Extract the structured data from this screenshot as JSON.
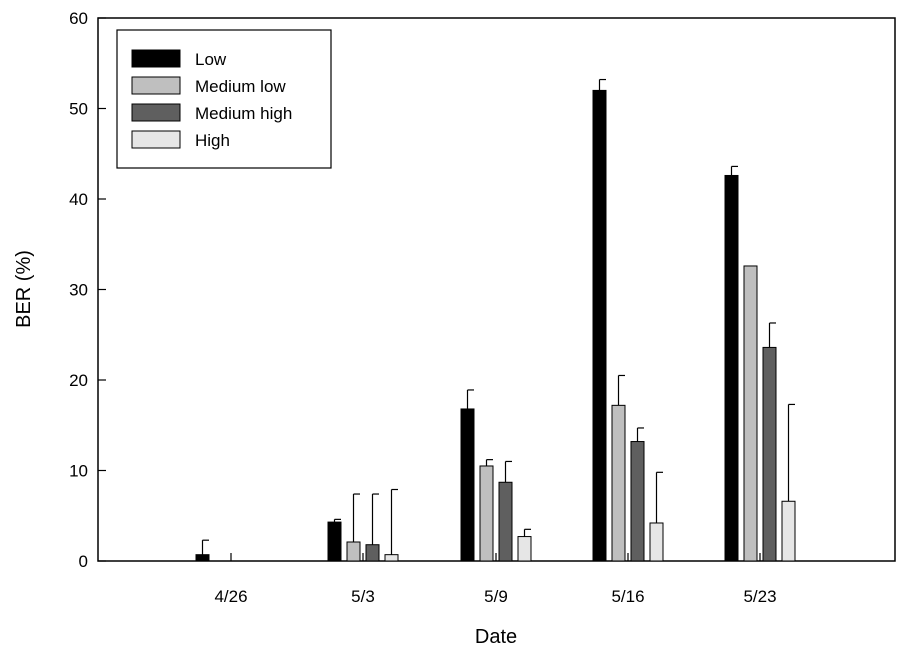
{
  "chart_data": {
    "type": "bar",
    "xlabel": "Date",
    "ylabel": "BER (%)",
    "ylim": [
      0,
      60
    ],
    "yticks": [
      0,
      10,
      20,
      30,
      40,
      50,
      60
    ],
    "categories": [
      "4/26",
      "5/3",
      "5/9",
      "5/16",
      "5/23"
    ],
    "legend_position": "top-left",
    "series": [
      {
        "name": "Low",
        "color": "#000000",
        "values": [
          0.7,
          4.3,
          16.8,
          52.0,
          42.6
        ],
        "error": [
          1.6,
          0.3,
          2.1,
          1.2,
          1.0
        ]
      },
      {
        "name": "Medium low",
        "color": "#bfbfbf",
        "values": [
          0,
          2.1,
          10.5,
          17.2,
          32.6
        ],
        "error": [
          0,
          5.3,
          0.7,
          3.3,
          0
        ]
      },
      {
        "name": "Medium high",
        "color": "#5f5f5f",
        "values": [
          0,
          1.8,
          8.7,
          13.2,
          23.6
        ],
        "error": [
          0,
          5.6,
          2.3,
          1.5,
          2.7
        ]
      },
      {
        "name": "High",
        "color": "#e6e6e6",
        "values": [
          0,
          0.7,
          2.7,
          4.2,
          6.6
        ],
        "error": [
          0,
          7.2,
          0.8,
          5.6,
          10.7
        ]
      }
    ]
  }
}
